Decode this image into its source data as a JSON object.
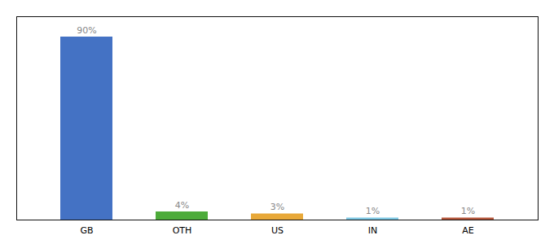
{
  "chart_data": {
    "type": "bar",
    "categories": [
      "GB",
      "OTH",
      "US",
      "IN",
      "AE"
    ],
    "values": [
      90,
      4,
      3,
      1,
      1
    ],
    "value_labels": [
      "90%",
      "4%",
      "3%",
      "1%",
      "1%"
    ],
    "data_labels": true,
    "colors": [
      "#4472c4",
      "#4dab3a",
      "#e8a838",
      "#7ec8e3",
      "#b5563a"
    ],
    "ylim": [
      0,
      100
    ],
    "tick_labels": "x"
  }
}
